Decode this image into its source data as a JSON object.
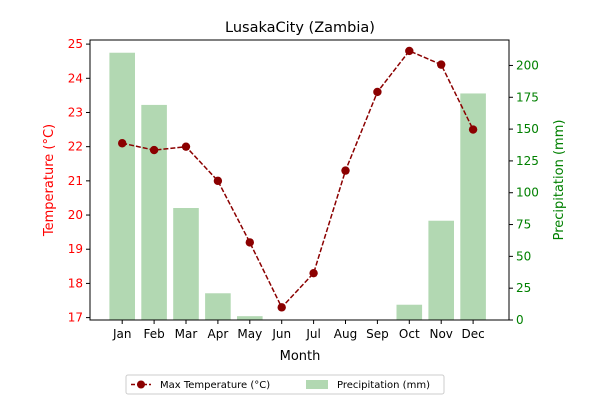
{
  "chart_data": {
    "type": "bar+line",
    "title": "LusakaCity (Zambia)",
    "xlabel": "Month",
    "ylabel_left": "Temperature (°C)",
    "ylabel_right": "Precipitation (mm)",
    "categories": [
      "Jan",
      "Feb",
      "Mar",
      "Apr",
      "May",
      "Jun",
      "Jul",
      "Aug",
      "Sep",
      "Oct",
      "Nov",
      "Dec"
    ],
    "series": [
      {
        "name": "Max Temperature (°C)",
        "kind": "line",
        "axis": "left",
        "color": "#8b0000",
        "values": [
          22.1,
          21.9,
          22.0,
          21.0,
          19.2,
          17.3,
          18.3,
          21.3,
          23.6,
          24.8,
          24.4,
          22.5
        ]
      },
      {
        "name": "Precipitation (mm)",
        "kind": "bar",
        "axis": "right",
        "color": "#b2d8b2",
        "values": [
          210,
          169,
          88,
          21,
          3,
          0,
          0,
          0,
          0,
          12,
          78,
          178
        ]
      }
    ],
    "ylim_left": [
      16.93,
      25.12
    ],
    "ylim_right": [
      0,
      220
    ],
    "yticks_left": [
      "17",
      "18",
      "19",
      "20",
      "21",
      "22",
      "23",
      "24",
      "25"
    ],
    "yticks_right": [
      "0",
      "25",
      "50",
      "75",
      "100",
      "125",
      "150",
      "175",
      "200"
    ],
    "left_axis_color": "#ff0000",
    "right_axis_color": "#008000",
    "grid": false,
    "legend": "below"
  }
}
